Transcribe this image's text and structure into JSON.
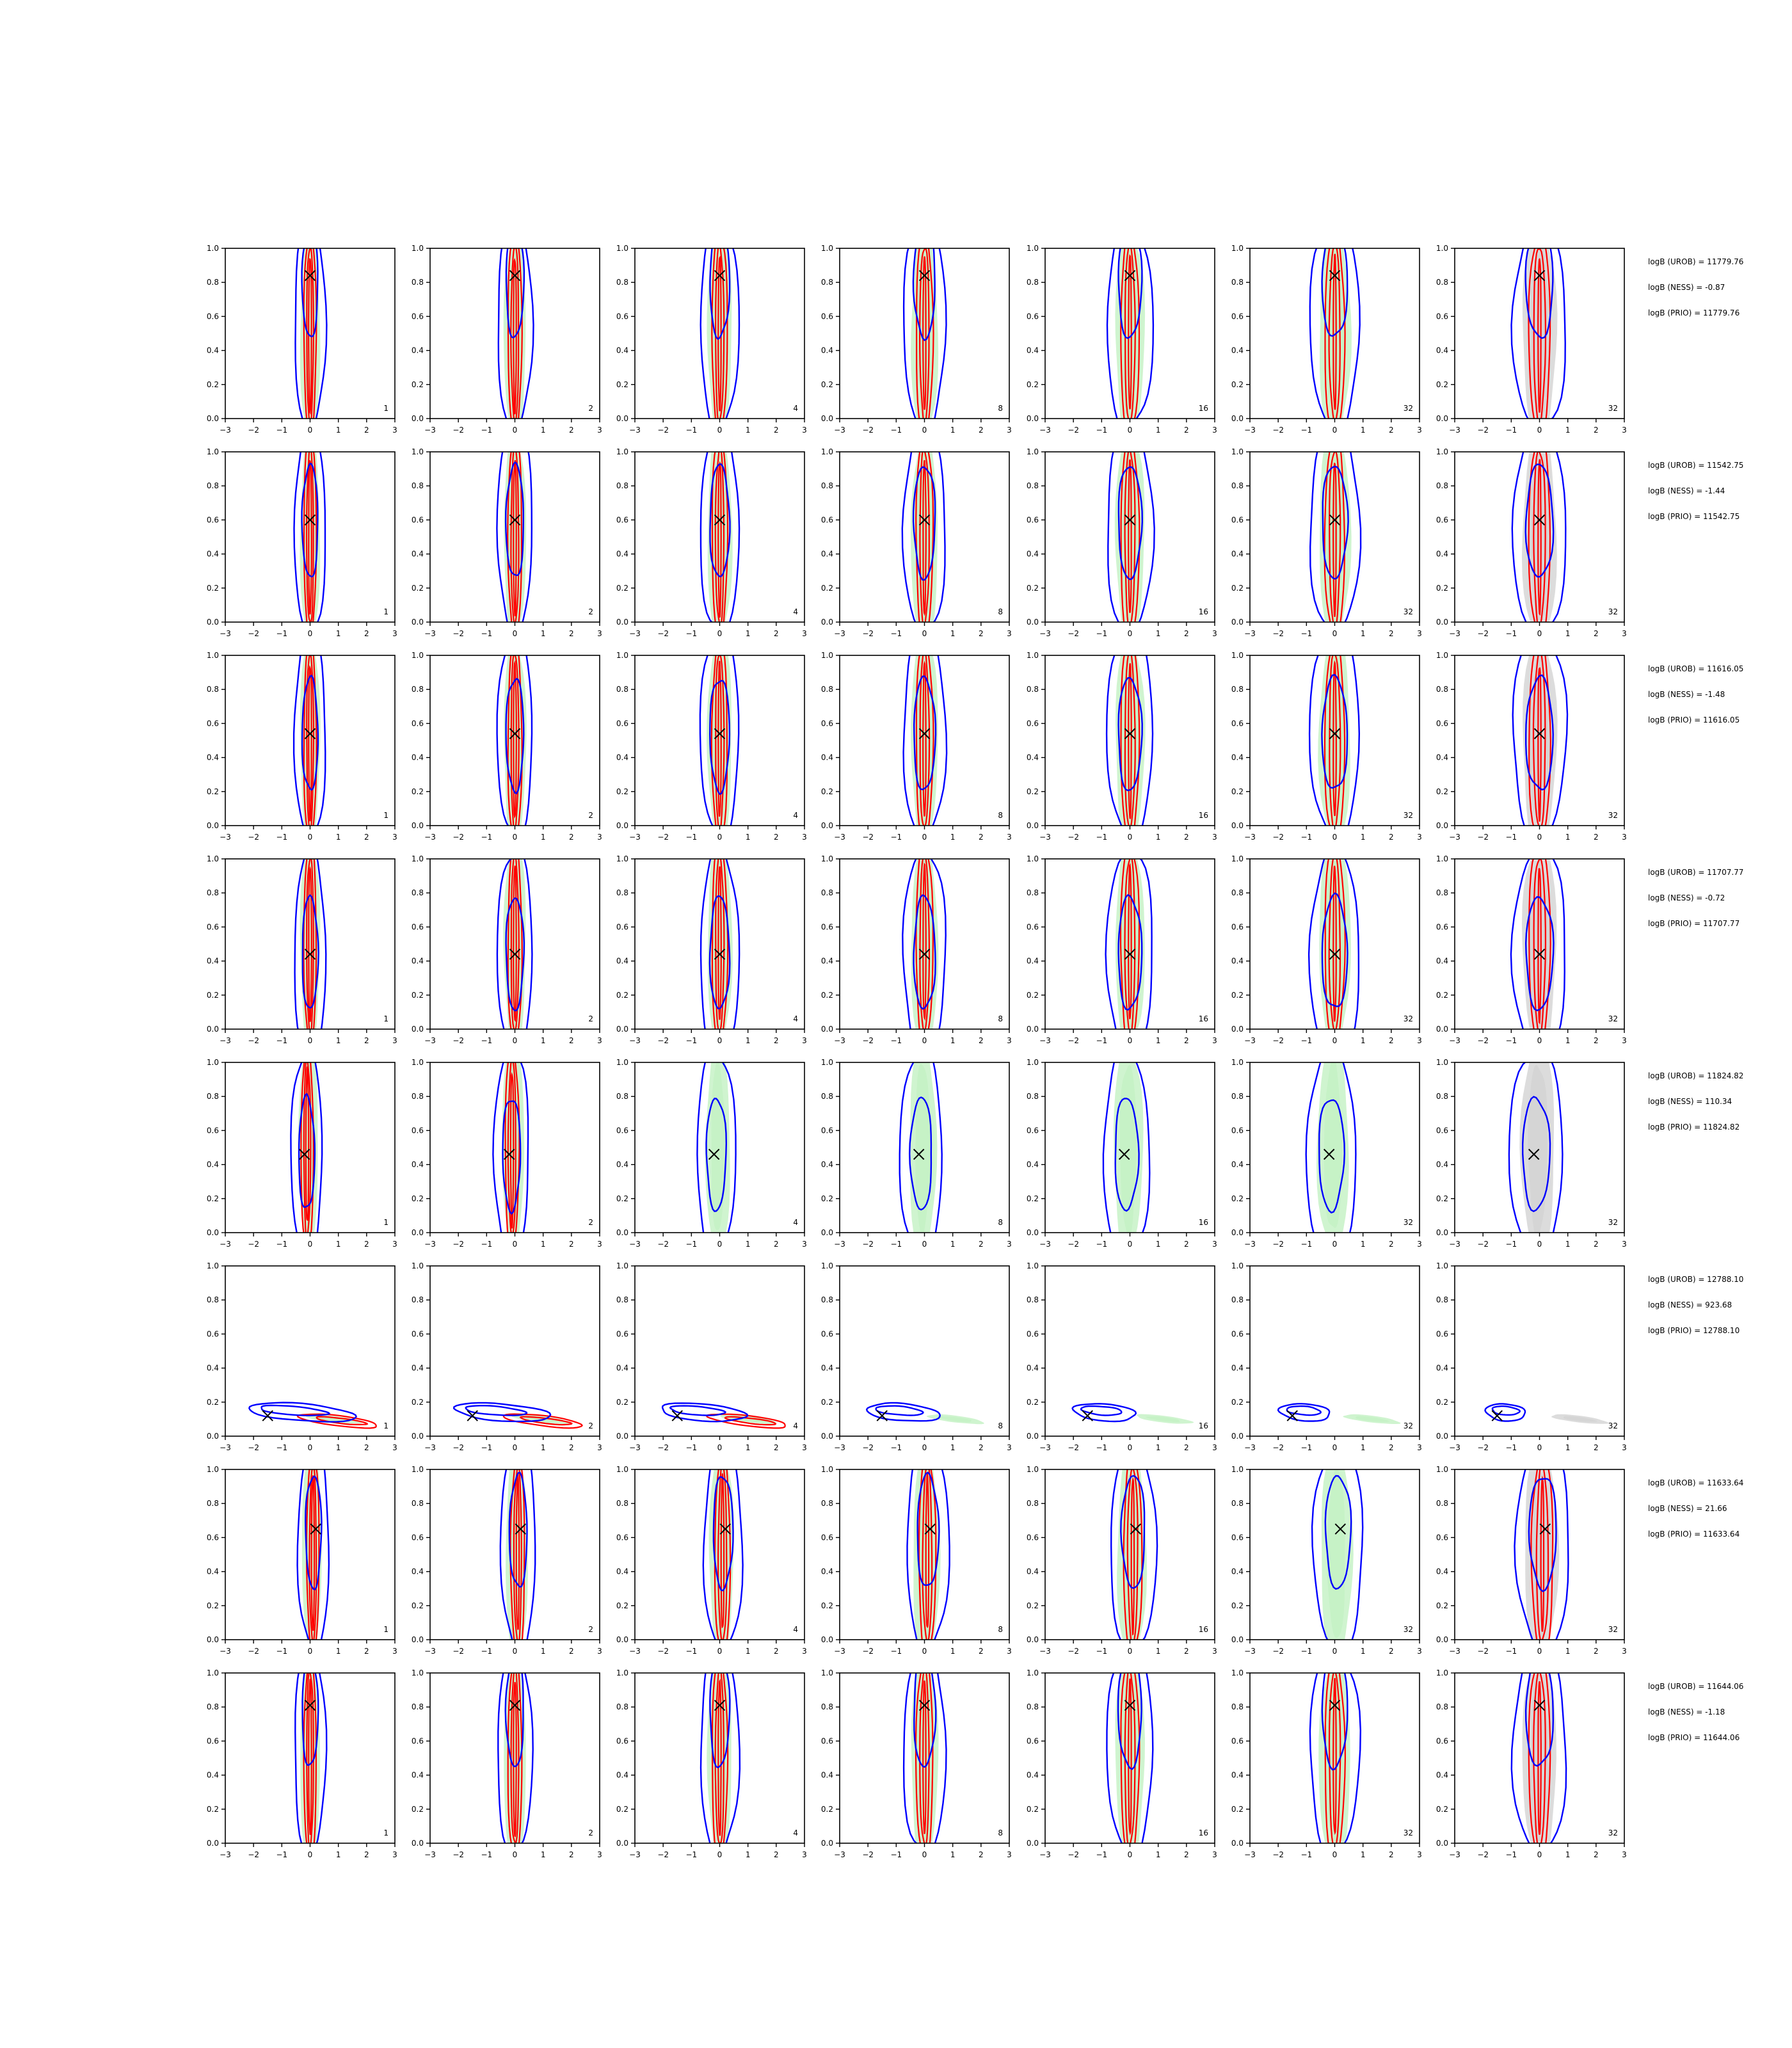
{
  "chart_data": {
    "type": "contour",
    "xlim": [
      -3,
      3
    ],
    "ylim": [
      0,
      1
    ],
    "x_ticks": [
      "−3",
      "−2",
      "−1",
      "0",
      "1",
      "2",
      "3"
    ],
    "y_ticks": [
      "0.0",
      "0.2",
      "0.4",
      "0.6",
      "0.8",
      "1.0"
    ],
    "grid": false,
    "colors": {
      "ness": "#0000ff",
      "urob": "#ff0000",
      "green_fill": "#bff0bf",
      "prior_fill": "#d0d0d0"
    },
    "panel_labels": [
      "1",
      "2",
      "4",
      "8",
      "16",
      "32",
      "32"
    ],
    "rows": [
      {
        "truth": [
          0.0,
          0.84
        ],
        "logB": [
          "logB (UROB) = 11779.76",
          "logB (NESS) = -0.87",
          "logB (PRIO) = 11779.76"
        ]
      },
      {
        "truth": [
          0.0,
          0.6
        ],
        "logB": [
          "logB (UROB) = 11542.75",
          "logB (NESS) = -1.44",
          "logB (PRIO) = 11542.75"
        ]
      },
      {
        "truth": [
          0.0,
          0.54
        ],
        "logB": [
          "logB (UROB) = 11616.05",
          "logB (NESS) = -1.48",
          "logB (PRIO) = 11616.05"
        ]
      },
      {
        "truth": [
          0.0,
          0.44
        ],
        "logB": [
          "logB (UROB) = 11707.77",
          "logB (NESS) = -0.72",
          "logB (PRIO) = 11707.77"
        ]
      },
      {
        "truth": [
          -0.2,
          0.46
        ],
        "logB": [
          "logB (UROB) = 11824.82",
          "logB (NESS) = 110.34",
          "logB (PRIO) = 11824.82"
        ]
      },
      {
        "truth": [
          -1.5,
          0.12
        ],
        "logB": [
          "logB (UROB) = 12788.10",
          "logB (NESS) = 923.68",
          "logB (PRIO) = 12788.10"
        ]
      },
      {
        "truth": [
          0.2,
          0.65
        ],
        "logB": [
          "logB (UROB) = 11633.64",
          "logB (NESS) = 21.66",
          "logB (PRIO) = 11633.64"
        ]
      },
      {
        "truth": [
          0.0,
          0.81
        ],
        "logB": [
          "logB (UROB) = 11644.06",
          "logB (NESS) = -1.18",
          "logB (PRIO) = 11644.06"
        ]
      }
    ]
  }
}
